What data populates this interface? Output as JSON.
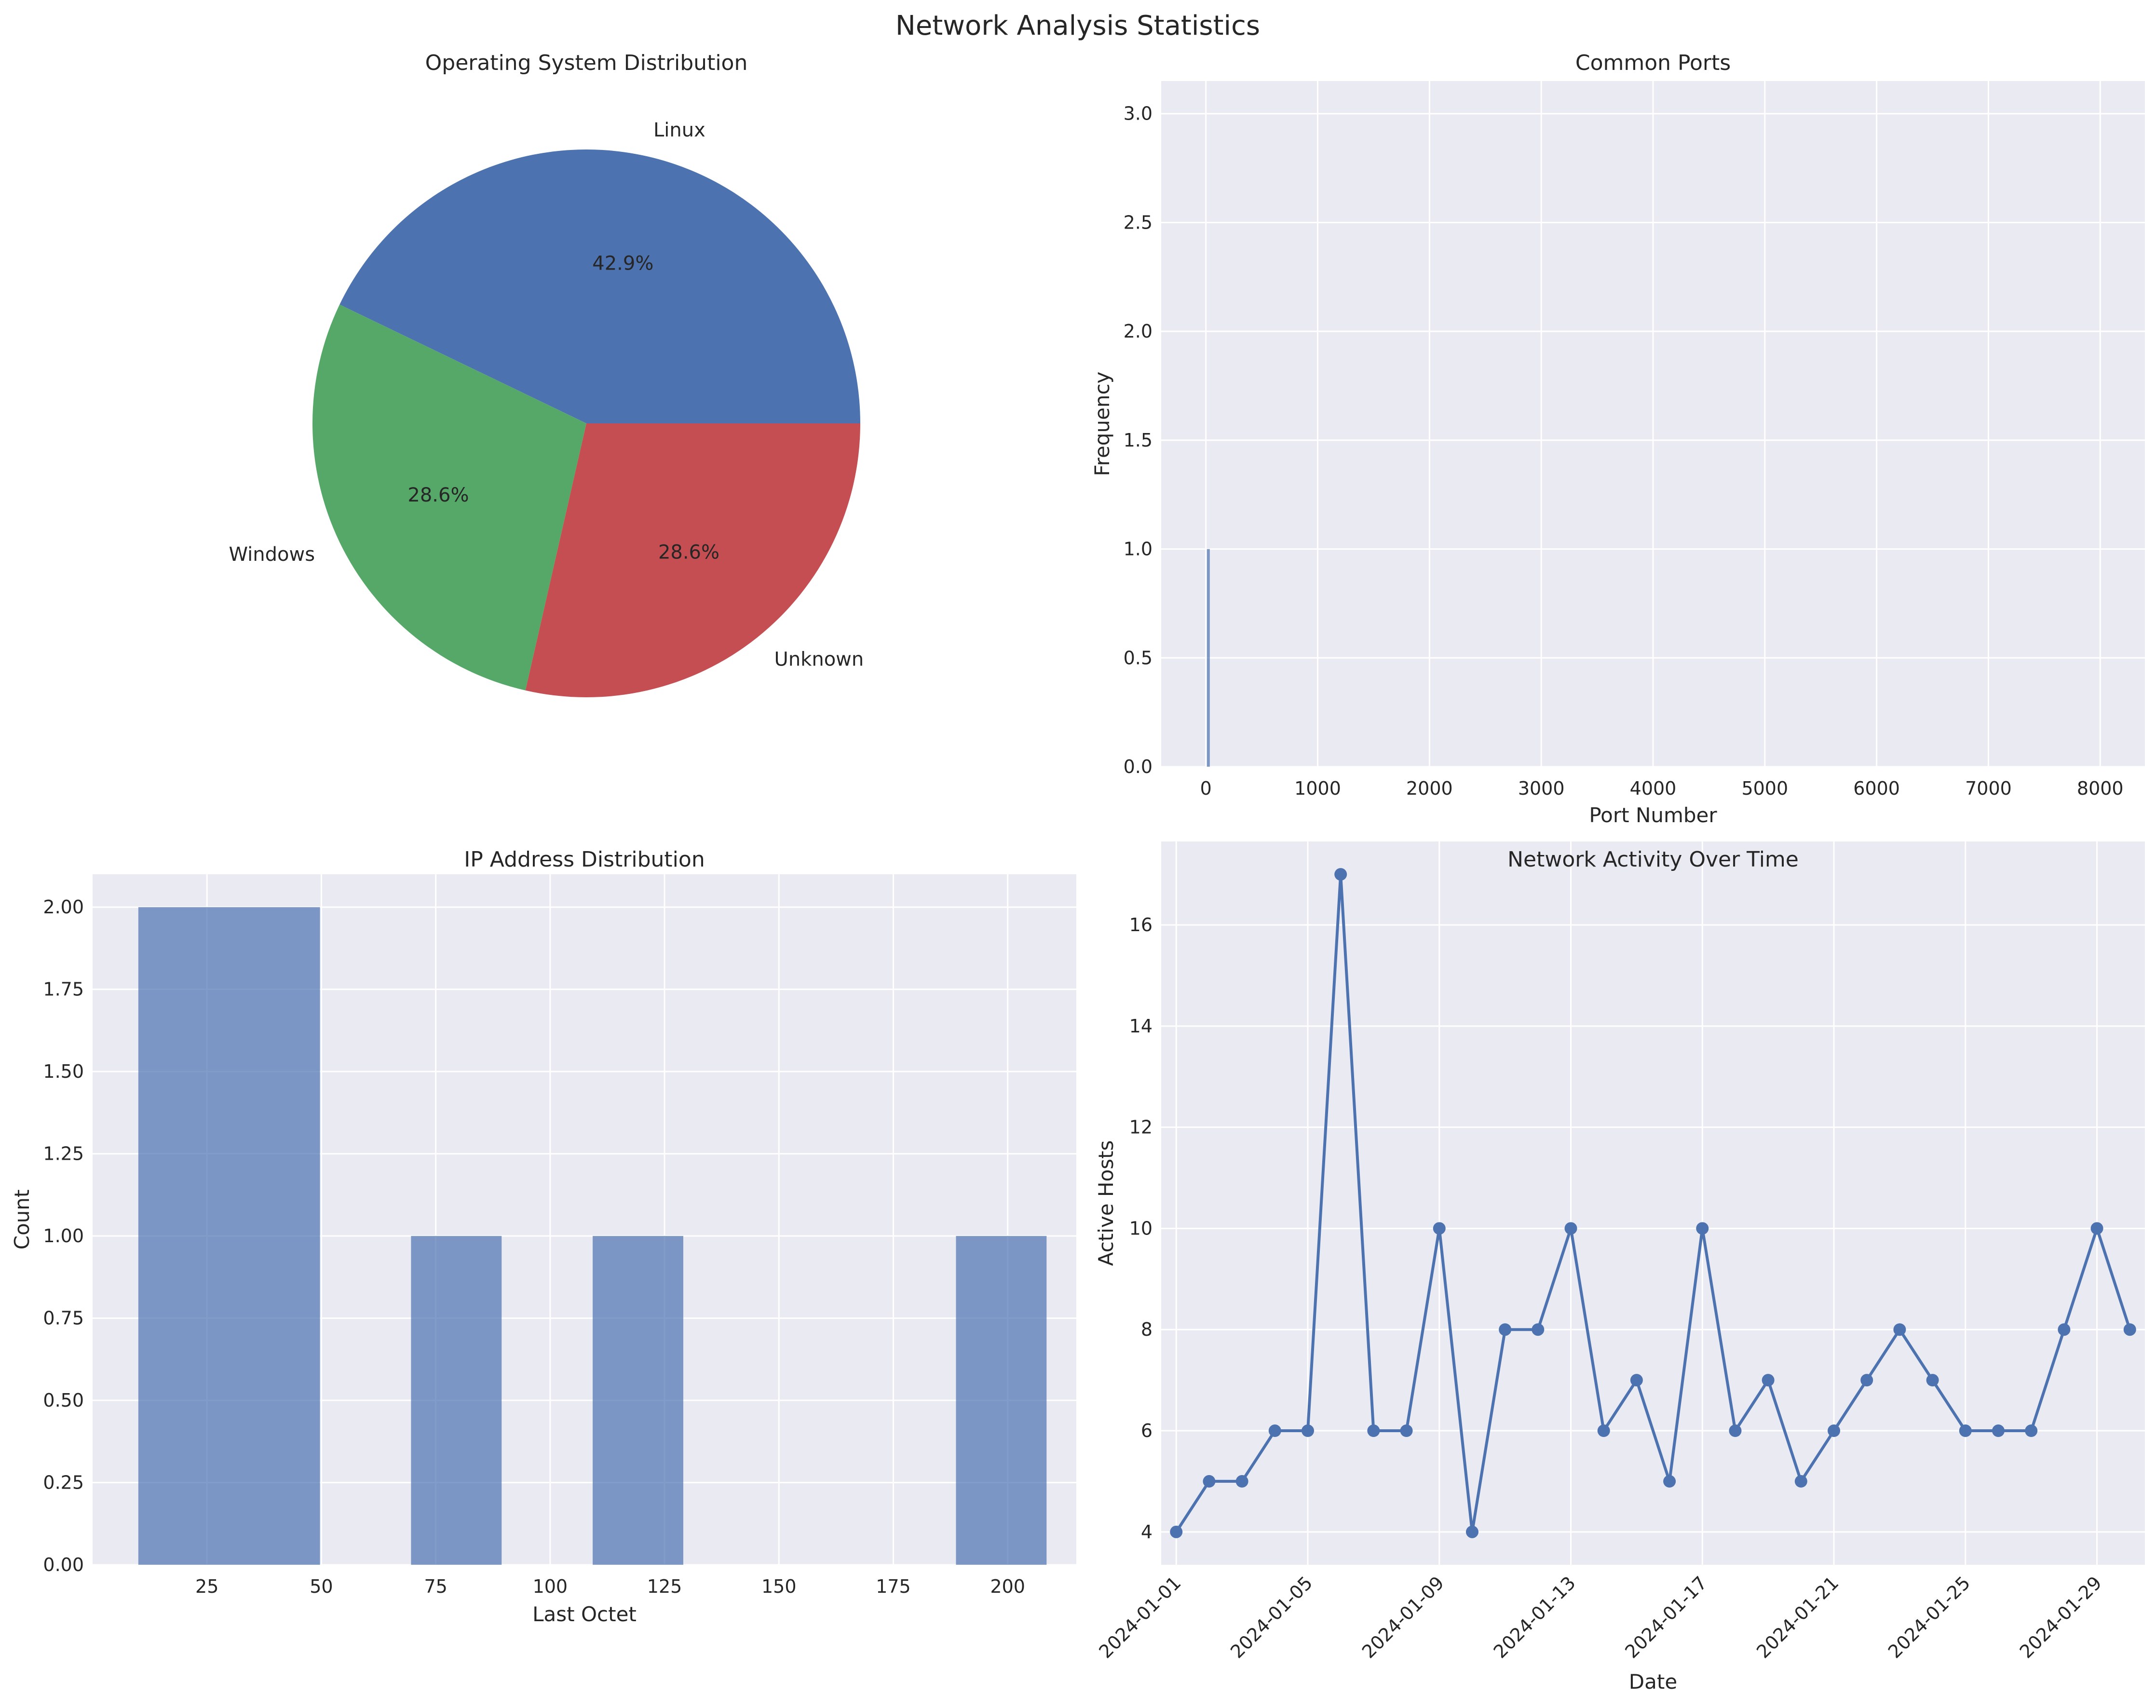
{
  "figure": {
    "title": "Network Analysis Statistics"
  },
  "colors": {
    "axes_bg": "#eaeaf2",
    "grid": "#ffffff",
    "blue": "#4c72b0",
    "green": "#55a868",
    "red": "#c44e52",
    "text": "#262626"
  },
  "chart_data": [
    {
      "id": "os",
      "type": "pie",
      "title": "Operating System Distribution",
      "labels": [
        "Linux",
        "Windows",
        "Unknown"
      ],
      "values": [
        3,
        2,
        2
      ],
      "percent_labels": [
        "42.9%",
        "28.6%",
        "28.6%"
      ],
      "colors": [
        "#4c72b0",
        "#55a868",
        "#c44e52"
      ],
      "start_angle_deg": 0,
      "direction": "counterclockwise"
    },
    {
      "id": "ports",
      "type": "bar",
      "title": "Common Ports",
      "xlabel": "Port Number",
      "ylabel": "Frequency",
      "xlim": [
        -400,
        8400
      ],
      "ylim": [
        0,
        3.15
      ],
      "xticks": [
        0,
        1000,
        2000,
        3000,
        4000,
        5000,
        6000,
        7000,
        8000
      ],
      "yticks": [
        0.0,
        0.5,
        1.0,
        1.5,
        2.0,
        2.5,
        3.0
      ],
      "ytick_labels": [
        "0.0",
        "0.5",
        "1.0",
        "1.5",
        "2.0",
        "2.5",
        "3.0"
      ],
      "bars": [
        {
          "x": 22,
          "value": 1
        }
      ],
      "grid": true
    },
    {
      "id": "ip",
      "type": "bar",
      "title": "IP Address Distribution",
      "xlabel": "Last Octet",
      "ylabel": "Count",
      "xlim": [
        0,
        215
      ],
      "ylim": [
        0,
        2.1
      ],
      "xticks": [
        25,
        50,
        75,
        100,
        125,
        150,
        175,
        200
      ],
      "yticks": [
        0.0,
        0.25,
        0.5,
        0.75,
        1.0,
        1.25,
        1.5,
        1.75,
        2.0
      ],
      "ytick_labels": [
        "0.00",
        "0.25",
        "0.50",
        "0.75",
        "1.00",
        "1.25",
        "1.50",
        "1.75",
        "2.00"
      ],
      "bins": [
        {
          "from": 10,
          "to": 49.7,
          "count": 2
        },
        {
          "from": 69.6,
          "to": 89.4,
          "count": 1
        },
        {
          "from": 109.3,
          "to": 129.1,
          "count": 1
        },
        {
          "from": 188.7,
          "to": 208.5,
          "count": 1
        }
      ],
      "grid": true
    },
    {
      "id": "activity",
      "type": "line",
      "title": "Network Activity Over Time",
      "xlabel": "Date",
      "ylabel": "Active Hosts",
      "x": [
        "2024-01-01",
        "2024-01-02",
        "2024-01-03",
        "2024-01-04",
        "2024-01-05",
        "2024-01-06",
        "2024-01-07",
        "2024-01-08",
        "2024-01-09",
        "2024-01-10",
        "2024-01-11",
        "2024-01-12",
        "2024-01-13",
        "2024-01-14",
        "2024-01-15",
        "2024-01-16",
        "2024-01-17",
        "2024-01-18",
        "2024-01-19",
        "2024-01-20",
        "2024-01-21",
        "2024-01-22",
        "2024-01-23",
        "2024-01-24",
        "2024-01-25",
        "2024-01-26",
        "2024-01-27",
        "2024-01-28",
        "2024-01-29",
        "2024-01-30"
      ],
      "y": [
        4,
        5,
        5,
        6,
        6,
        17,
        6,
        6,
        10,
        4,
        8,
        8,
        10,
        6,
        7,
        5,
        10,
        6,
        7,
        5,
        6,
        7,
        8,
        7,
        6,
        6,
        6,
        8,
        10,
        8
      ],
      "xlim": [
        "2023-12-31T13:00",
        "2024-01-30T11:00"
      ],
      "ylim": [
        3.35,
        17.65
      ],
      "xticks": [
        "2024-01-01",
        "2024-01-05",
        "2024-01-09",
        "2024-01-13",
        "2024-01-17",
        "2024-01-21",
        "2024-01-25",
        "2024-01-29"
      ],
      "yticks": [
        4,
        6,
        8,
        10,
        12,
        14,
        16
      ],
      "markers": true,
      "grid": true
    }
  ]
}
